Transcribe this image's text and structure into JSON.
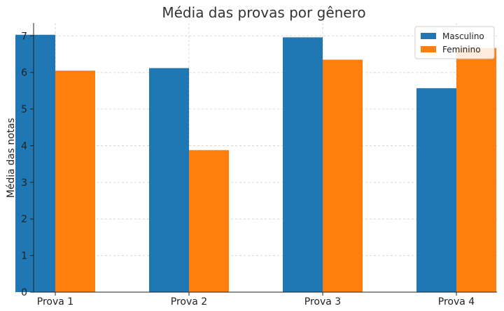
{
  "chart_data": {
    "type": "bar",
    "title": "Média das provas por gênero",
    "xlabel": "",
    "ylabel": "Média das notas",
    "categories": [
      "Prova 1",
      "Prova 2",
      "Prova 3",
      "Prova 4"
    ],
    "series": [
      {
        "name": "Masculino",
        "color": "#1f77b4",
        "values": [
          7.03,
          6.12,
          6.96,
          5.57
        ]
      },
      {
        "name": "Feminino",
        "color": "#ff7f0e",
        "values": [
          6.05,
          3.88,
          6.35,
          6.67
        ]
      }
    ],
    "ylim": [
      0,
      7.35
    ],
    "yticks": [
      0,
      1,
      2,
      3,
      4,
      5,
      6,
      7
    ],
    "grid": true,
    "legend": "top-right"
  }
}
